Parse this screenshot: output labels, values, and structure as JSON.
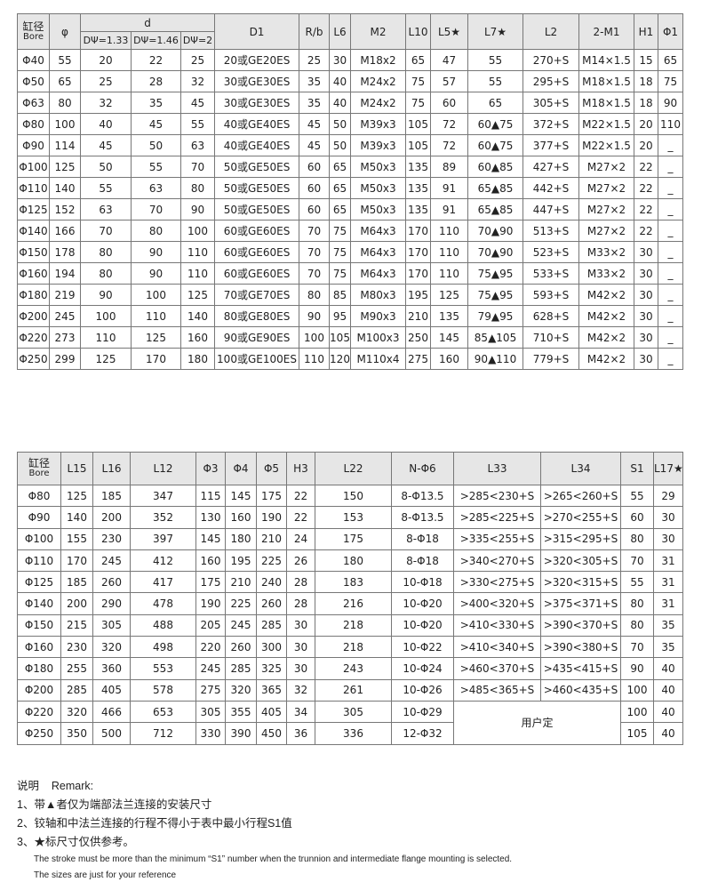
{
  "table1": {
    "bore_cn": "缸径",
    "bore_en": "Bore",
    "phi": "φ",
    "d": "d",
    "d_sub": [
      "DΨ=1.33",
      "DΨ=1.46",
      "DΨ=2"
    ],
    "headers_after": [
      "D1",
      "R/b",
      "L6",
      "M2",
      "L10",
      "L5★",
      "L7★",
      "L2",
      "2-M1",
      "H1",
      "Φ1"
    ],
    "rows": [
      [
        "Φ40",
        "55",
        "20",
        "22",
        "25",
        "20或GE20ES",
        "25",
        "30",
        "M18x2",
        "65",
        "47",
        "55",
        "270+S",
        "M14×1.5",
        "15",
        "65"
      ],
      [
        "Φ50",
        "65",
        "25",
        "28",
        "32",
        "30或GE30ES",
        "35",
        "40",
        "M24x2",
        "75",
        "57",
        "55",
        "295+S",
        "M18×1.5",
        "18",
        "75"
      ],
      [
        "Φ63",
        "80",
        "32",
        "35",
        "45",
        "30或GE30ES",
        "35",
        "40",
        "M24x2",
        "75",
        "60",
        "65",
        "305+S",
        "M18×1.5",
        "18",
        "90"
      ],
      [
        "Φ80",
        "100",
        "40",
        "45",
        "55",
        "40或GE40ES",
        "45",
        "50",
        "M39x3",
        "105",
        "72",
        "60▲75",
        "372+S",
        "M22×1.5",
        "20",
        "110"
      ],
      [
        "Φ90",
        "114",
        "45",
        "50",
        "63",
        "40或GE40ES",
        "45",
        "50",
        "M39x3",
        "105",
        "72",
        "60▲75",
        "377+S",
        "M22×1.5",
        "20",
        "_"
      ],
      [
        "Φ100",
        "125",
        "50",
        "55",
        "70",
        "50或GE50ES",
        "60",
        "65",
        "M50x3",
        "135",
        "89",
        "60▲85",
        "427+S",
        "M27×2",
        "22",
        "_"
      ],
      [
        "Φ110",
        "140",
        "55",
        "63",
        "80",
        "50或GE50ES",
        "60",
        "65",
        "M50x3",
        "135",
        "91",
        "65▲85",
        "442+S",
        "M27×2",
        "22",
        "_"
      ],
      [
        "Φ125",
        "152",
        "63",
        "70",
        "90",
        "50或GE50ES",
        "60",
        "65",
        "M50x3",
        "135",
        "91",
        "65▲85",
        "447+S",
        "M27×2",
        "22",
        "_"
      ],
      [
        "Φ140",
        "166",
        "70",
        "80",
        "100",
        "60或GE60ES",
        "70",
        "75",
        "M64x3",
        "170",
        "110",
        "70▲90",
        "513+S",
        "M27×2",
        "22",
        "_"
      ],
      [
        "Φ150",
        "178",
        "80",
        "90",
        "110",
        "60或GE60ES",
        "70",
        "75",
        "M64x3",
        "170",
        "110",
        "70▲90",
        "523+S",
        "M33×2",
        "30",
        "_"
      ],
      [
        "Φ160",
        "194",
        "80",
        "90",
        "110",
        "60或GE60ES",
        "70",
        "75",
        "M64x3",
        "170",
        "110",
        "75▲95",
        "533+S",
        "M33×2",
        "30",
        "_"
      ],
      [
        "Φ180",
        "219",
        "90",
        "100",
        "125",
        "70或GE70ES",
        "80",
        "85",
        "M80x3",
        "195",
        "125",
        "75▲95",
        "593+S",
        "M42×2",
        "30",
        "_"
      ],
      [
        "Φ200",
        "245",
        "100",
        "110",
        "140",
        "80或GE80ES",
        "90",
        "95",
        "M90x3",
        "210",
        "135",
        "79▲95",
        "628+S",
        "M42×2",
        "30",
        "_"
      ],
      [
        "Φ220",
        "273",
        "110",
        "125",
        "160",
        "90或GE90ES",
        "100",
        "105",
        "M100x3",
        "250",
        "145",
        "85▲105",
        "710+S",
        "M42×2",
        "30",
        "_"
      ],
      [
        "Φ250",
        "299",
        "125",
        "170",
        "180",
        "100或GE100ES",
        "110",
        "120",
        "M110x4",
        "275",
        "160",
        "90▲110",
        "779+S",
        "M42×2",
        "30",
        "_"
      ]
    ]
  },
  "table2": {
    "bore_cn": "缸径",
    "bore_en": "Bore",
    "headers_after": [
      "L15",
      "L16",
      "L12",
      "Φ3",
      "Φ4",
      "Φ5",
      "H3",
      "L22",
      "N-Φ6",
      "L33",
      "L34",
      "S1",
      "L17★"
    ],
    "custom_label": "用户定",
    "rows": [
      [
        "Φ80",
        "125",
        "185",
        "347",
        "115",
        "145",
        "175",
        "22",
        "150",
        "8-Φ13.5",
        ">285<230+S",
        ">265<260+S",
        "55",
        "29"
      ],
      [
        "Φ90",
        "140",
        "200",
        "352",
        "130",
        "160",
        "190",
        "22",
        "153",
        "8-Φ13.5",
        ">285<225+S",
        ">270<255+S",
        "60",
        "30"
      ],
      [
        "Φ100",
        "155",
        "230",
        "397",
        "145",
        "180",
        "210",
        "24",
        "175",
        "8-Φ18",
        ">335<255+S",
        ">315<295+S",
        "80",
        "30"
      ],
      [
        "Φ110",
        "170",
        "245",
        "412",
        "160",
        "195",
        "225",
        "26",
        "180",
        "8-Φ18",
        ">340<270+S",
        ">320<305+S",
        "70",
        "31"
      ],
      [
        "Φ125",
        "185",
        "260",
        "417",
        "175",
        "210",
        "240",
        "28",
        "183",
        "10-Φ18",
        ">330<275+S",
        ">320<315+S",
        "55",
        "31"
      ],
      [
        "Φ140",
        "200",
        "290",
        "478",
        "190",
        "225",
        "260",
        "28",
        "216",
        "10-Φ20",
        ">400<320+S",
        ">375<371+S",
        "80",
        "31"
      ],
      [
        "Φ150",
        "215",
        "305",
        "488",
        "205",
        "245",
        "285",
        "30",
        "218",
        "10-Φ20",
        ">410<330+S",
        ">390<370+S",
        "80",
        "35"
      ],
      [
        "Φ160",
        "230",
        "320",
        "498",
        "220",
        "260",
        "300",
        "30",
        "218",
        "10-Φ22",
        ">410<340+S",
        ">390<380+S",
        "70",
        "35"
      ],
      [
        "Φ180",
        "255",
        "360",
        "553",
        "245",
        "285",
        "325",
        "30",
        "243",
        "10-Φ24",
        ">460<370+S",
        ">435<415+S",
        "90",
        "40"
      ],
      [
        "Φ200",
        "285",
        "405",
        "578",
        "275",
        "320",
        "365",
        "32",
        "261",
        "10-Φ26",
        ">485<365+S",
        ">460<435+S",
        "100",
        "40"
      ],
      [
        "Φ220",
        "320",
        "466",
        "653",
        "305",
        "355",
        "405",
        "34",
        "305",
        "10-Φ29",
        null,
        null,
        "100",
        "40"
      ],
      [
        "Φ250",
        "350",
        "500",
        "712",
        "330",
        "390",
        "450",
        "36",
        "336",
        "12-Φ32",
        null,
        null,
        "105",
        "40"
      ]
    ]
  },
  "notes": {
    "title": "说明    Remark:",
    "items": [
      "1、带▲者仅为端部法兰连接的安装尺寸",
      "2、铰轴和中法兰连接的行程不得小于表中最小行程S1值",
      "3、★标尺寸仅供参考。"
    ],
    "english": [
      "The stroke must be more than the minimum “S1” number when the  trunnion and intermediate flange mounting is selected.",
      "The sizes are just for your reference"
    ]
  }
}
